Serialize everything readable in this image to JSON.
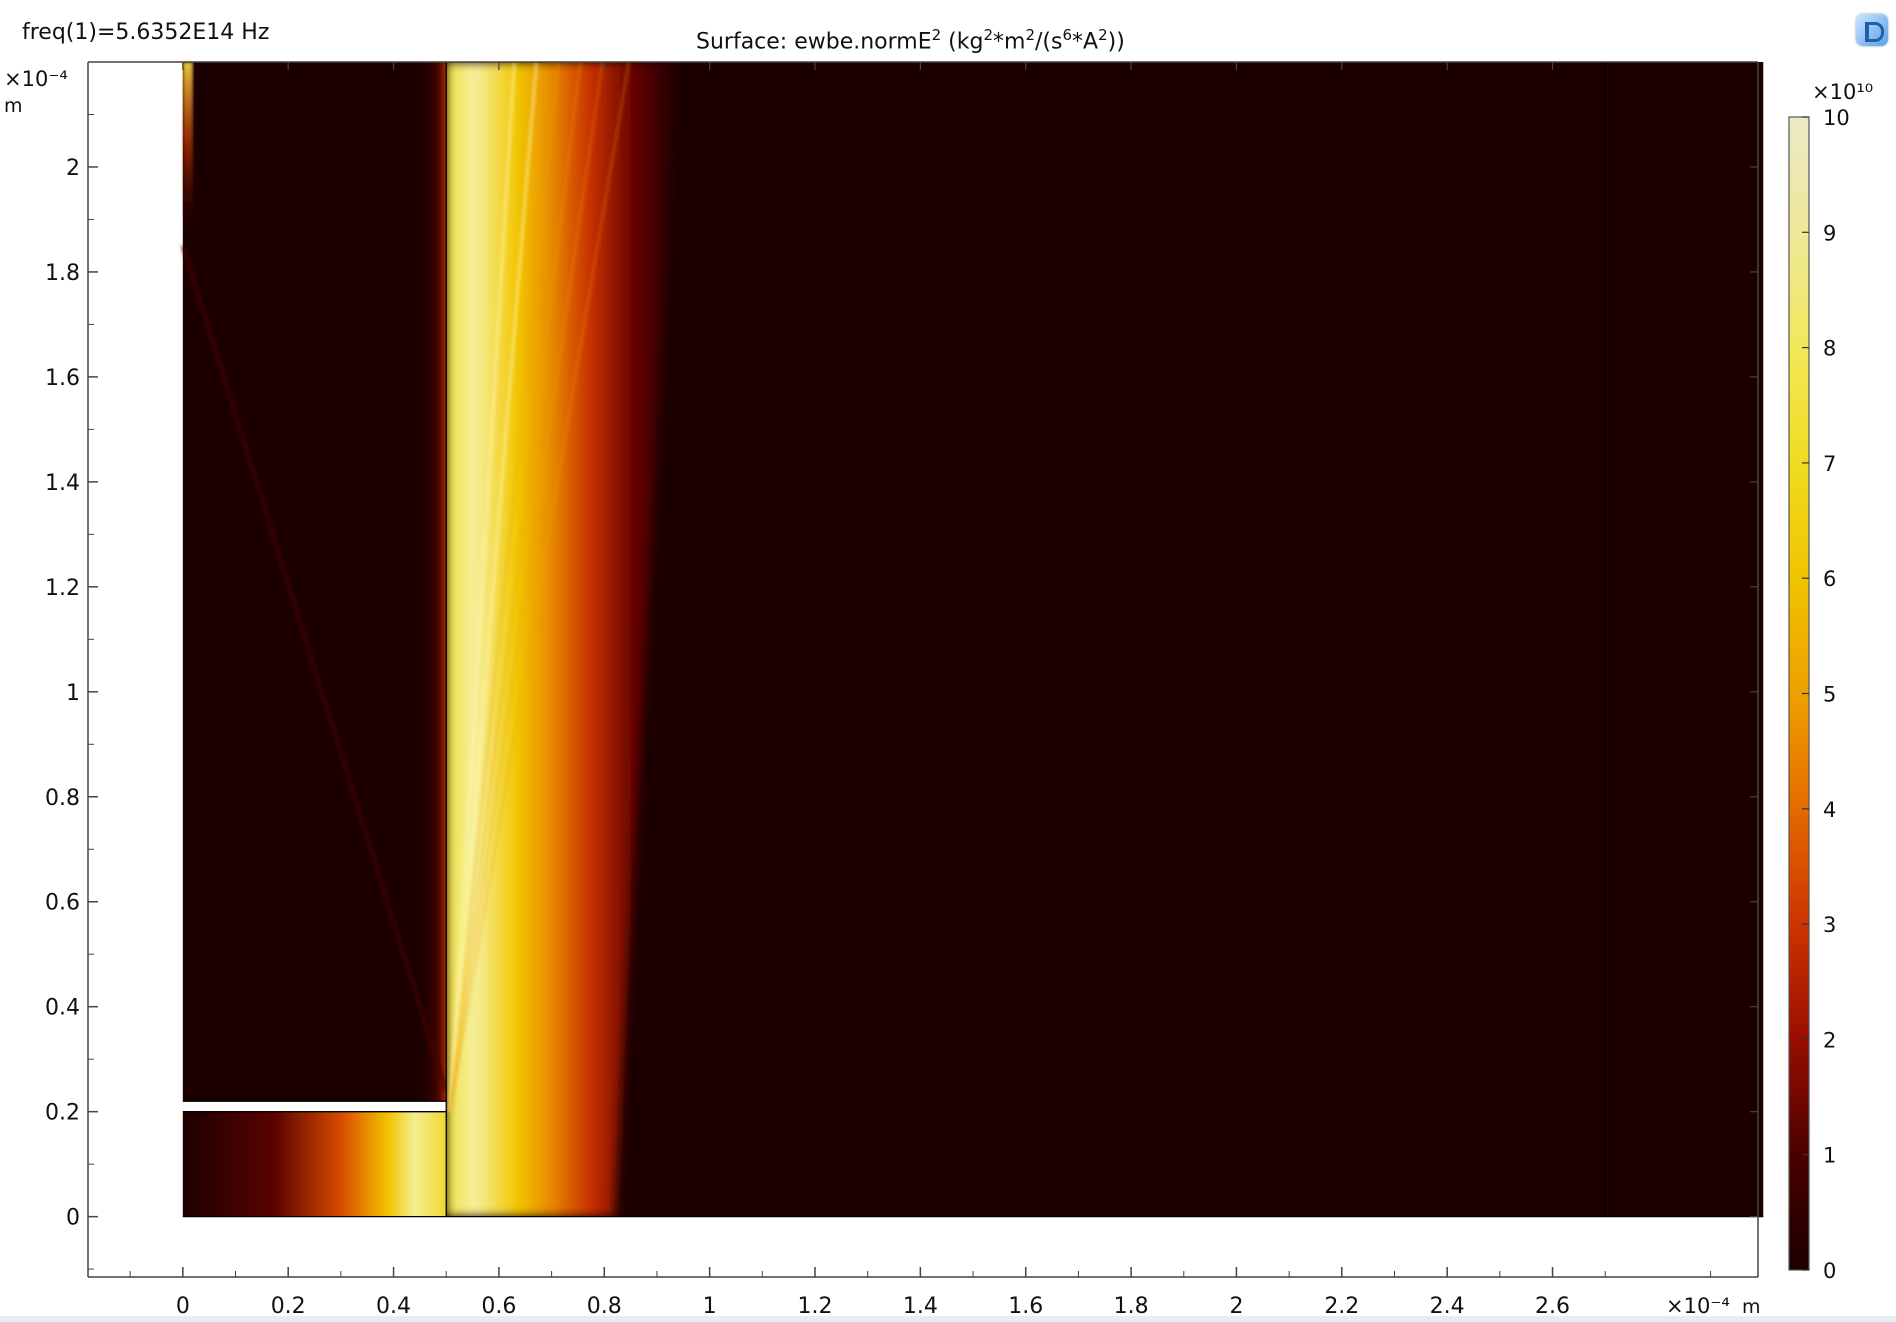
{
  "header": {
    "freq_label": "freq(1)=5.6352E14 Hz",
    "title_prefix": "Surface: ewbe.normE",
    "title_exp": "2",
    "title_units_open": " (kg",
    "title_units_m": "*m",
    "title_units_s": "/(s",
    "title_units_a": "*A",
    "title_units_close": "))",
    "exp_2": "2",
    "exp_6": "6"
  },
  "colors": {
    "background": "#1c0000",
    "colormap": [
      "#1c0000",
      "#3a0000",
      "#8a0a00",
      "#c83000",
      "#e86a00",
      "#f2a000",
      "#f2c800",
      "#f0e040",
      "#f2ee90",
      "#ece9c0"
    ]
  },
  "chart_data": {
    "type": "heatmap",
    "title": "Surface: ewbe.normE2 (kg2*m2/(s6*A2))",
    "quantity": "ewbe.normE2",
    "frequency": "freq(1)=5.6352E14 Hz",
    "x_axis": {
      "unit": "m",
      "multiplier": "×10⁻⁴",
      "ticks": [
        "0",
        "0.2",
        "0.4",
        "0.6",
        "0.8",
        "1",
        "1.2",
        "1.4",
        "1.6",
        "1.8",
        "2",
        "2.2",
        "2.4",
        "2.6"
      ],
      "range": [
        -0.18,
        2.99
      ]
    },
    "y_axis": {
      "unit": "m",
      "multiplier": "×10⁻⁴",
      "ticks": [
        "0",
        "0.2",
        "0.4",
        "0.6",
        "0.8",
        "1",
        "1.2",
        "1.4",
        "1.6",
        "1.8",
        "2"
      ],
      "range": [
        -0.115,
        2.2
      ]
    },
    "colorbar": {
      "multiplier": "×10¹⁰",
      "ticks": [
        "0",
        "1",
        "2",
        "3",
        "4",
        "5",
        "6",
        "7",
        "8",
        "9",
        "10"
      ],
      "range": [
        0,
        10
      ]
    },
    "domain": {
      "upper_left_region": {
        "x": [
          0,
          0.5
        ],
        "y": [
          0.22,
          2.2
        ]
      },
      "lower_left_waveguide": {
        "x": [
          0,
          0.5
        ],
        "y": [
          0,
          0.2
        ]
      },
      "right_region": {
        "x": [
          0.5,
          3.0
        ],
        "y": [
          0,
          2.2
        ]
      },
      "internal_boundary_x": 2.7
    },
    "features": {
      "main_beam": {
        "x_start": 0.5,
        "peak_value": 10,
        "direction": "upward, diverging to the right"
      },
      "waveguide_mode_peak_x": 0.42
    }
  }
}
